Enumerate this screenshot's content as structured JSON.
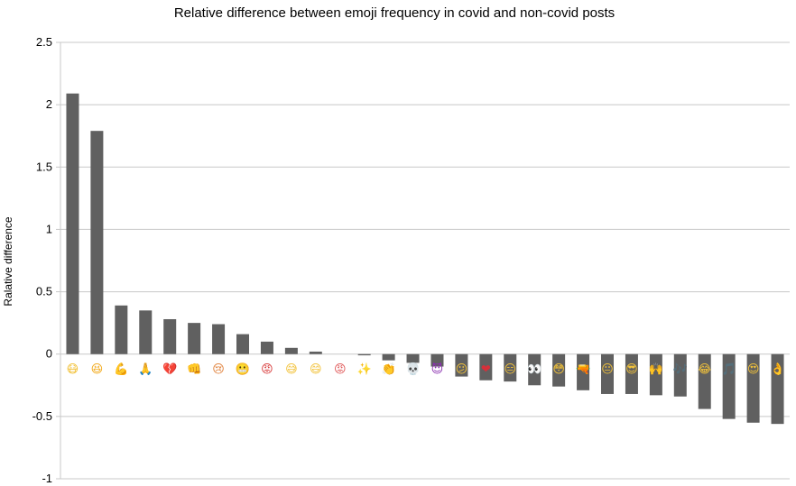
{
  "chart_data": {
    "type": "bar",
    "title": "Relative difference between emoji frequency in covid and non-covid posts",
    "xlabel": "",
    "ylabel": "Ralative difference",
    "ylim": [
      -1,
      2.5
    ],
    "yticks": [
      "2.5",
      "2",
      "1.5",
      "1",
      "0.5",
      "0",
      "-0.5",
      "-1"
    ],
    "grid": true,
    "bar_color": "#606060",
    "grid_color": "#c8c8c8",
    "categories": [
      "😷",
      "😆",
      "💪",
      "🙏",
      "💔",
      "👊",
      "😢",
      "😬",
      "😡",
      "😅",
      "😄",
      "😡",
      "✨",
      "👏",
      "💀",
      "😈",
      "😕",
      "❤",
      "😑",
      "👀",
      "😳",
      "🔫",
      "😐",
      "😎",
      "🙌",
      "🎶",
      "😂",
      "🎵",
      "😍",
      "👌"
    ],
    "emoji_colors": [
      "#f2c23a",
      "#f2a91a",
      "#f2b233",
      "#e8a848",
      "#d6303a",
      "#f2b233",
      "#e0803a",
      "#f2c23a",
      "#d83a3a",
      "#f2c23a",
      "#f2c23a",
      "#e05a5a",
      "#f2c23a",
      "#f2b233",
      "#999999",
      "#8a2fb0",
      "#f2c23a",
      "#d6303a",
      "#f2c23a",
      "#555555",
      "#f2c23a",
      "#e8a030",
      "#f2c23a",
      "#f2c23a",
      "#f2b233",
      "#3a8ee0",
      "#f2c23a",
      "#3a8ee0",
      "#f2c23a",
      "#f2b233"
    ],
    "values": [
      2.09,
      1.79,
      0.39,
      0.35,
      0.28,
      0.25,
      0.24,
      0.16,
      0.1,
      0.05,
      0.02,
      0.0,
      -0.01,
      -0.05,
      -0.07,
      -0.1,
      -0.18,
      -0.21,
      -0.22,
      -0.25,
      -0.26,
      -0.29,
      -0.32,
      -0.32,
      -0.33,
      -0.34,
      -0.44,
      -0.52,
      -0.55,
      -0.56
    ]
  }
}
